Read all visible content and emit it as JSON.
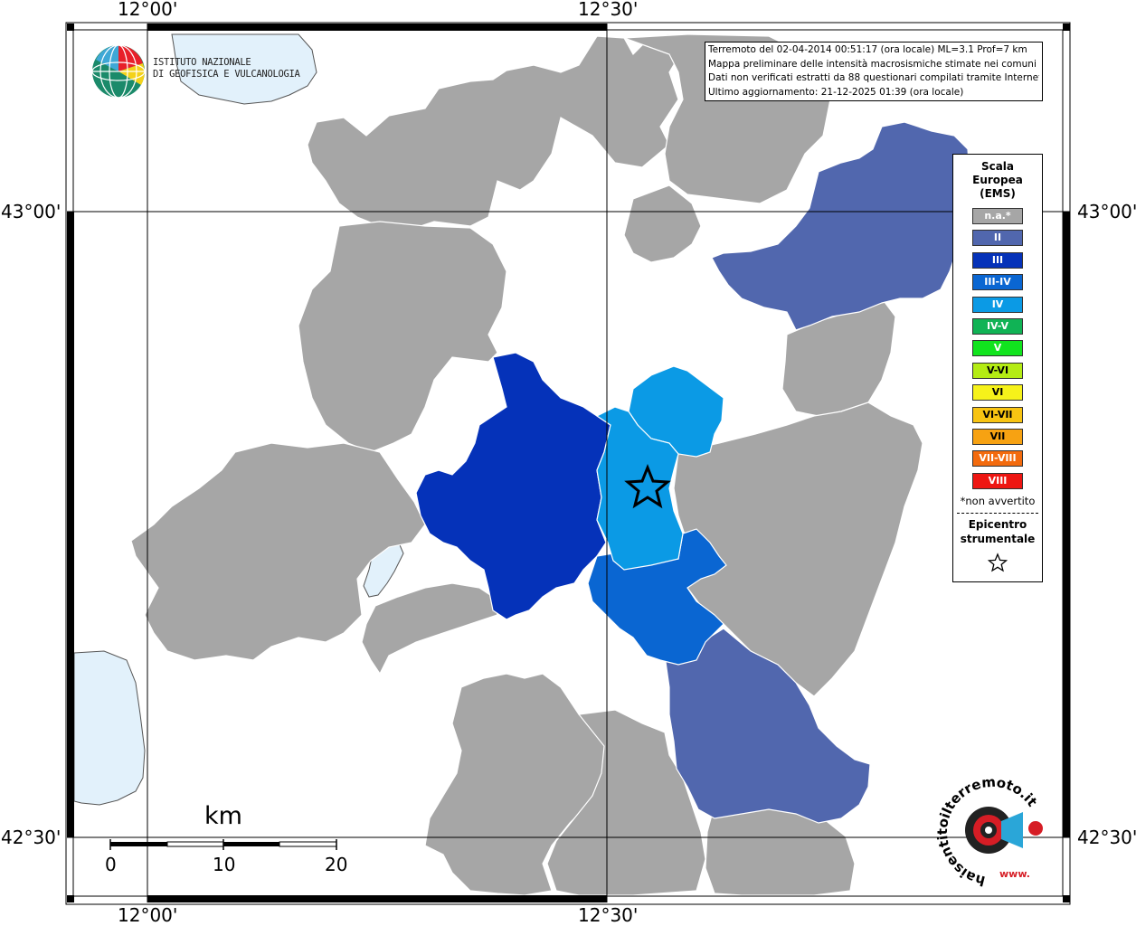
{
  "coordinates": {
    "top_left_lon": "12°00'",
    "top_right_lon": "12°30'",
    "bottom_left_lon": "12°00'",
    "bottom_right_lon": "12°30'",
    "left_upper_lat": "43°00'",
    "right_upper_lat": "43°00'",
    "left_lower_lat": "42°30'",
    "right_lower_lat": "42°30'"
  },
  "info_box": {
    "line1": "Terremoto del 02-04-2014 00:51:17 (ora locale) ML=3.1 Prof=7 km",
    "line2": "Mappa preliminare delle intensità macrosismiche stimate nei comuni",
    "line3": "Dati non verificati estratti da 88 questionari compilati tramite Internet.",
    "line4": "Ultimo aggiornamento: 21-12-2025 01:39 (ora locale)"
  },
  "ingv_logo": {
    "line1": "ISTITUTO NAZIONALE",
    "line2": "DI GEOFISICA E VULCANOLOGIA"
  },
  "legend": {
    "title_line1": "Scala",
    "title_line2": "Europea",
    "title_line3": "(EMS)",
    "items": [
      {
        "label": "n.a.*",
        "color": "#a6a6a6"
      },
      {
        "label": "II",
        "color": "#5167ae"
      },
      {
        "label": "III",
        "color": "#0532b9"
      },
      {
        "label": "III-IV",
        "color": "#0a66d2"
      },
      {
        "label": "IV",
        "color": "#0b9ae5"
      },
      {
        "label": "IV-V",
        "color": "#10b355"
      },
      {
        "label": "V",
        "color": "#11e41e"
      },
      {
        "label": "V-VI",
        "color": "#b4ec14"
      },
      {
        "label": "VI",
        "color": "#f6f21a"
      },
      {
        "label": "VI-VII",
        "color": "#f8c412"
      },
      {
        "label": "VII",
        "color": "#f7a212"
      },
      {
        "label": "VII-VIII",
        "color": "#f36b0e"
      },
      {
        "label": "VIII",
        "color": "#ee1612"
      }
    ],
    "note": "*non avvertito",
    "epicenter_line1": "Epicentro",
    "epicenter_line2": "strumentale"
  },
  "scale_bar": {
    "unit": "km",
    "labels": [
      "0",
      "10",
      "20"
    ]
  },
  "hsit_logo": {
    "text": "haisentitoilterremoto.it",
    "www": "www."
  },
  "colors": {
    "na": "#a6a6a6",
    "ems_ii": "#5167ae",
    "ems_iii": "#0532b9",
    "ems_iii_iv": "#0a66d2",
    "ems_iv": "#0b9ae5",
    "water": "#e2f1fb"
  }
}
